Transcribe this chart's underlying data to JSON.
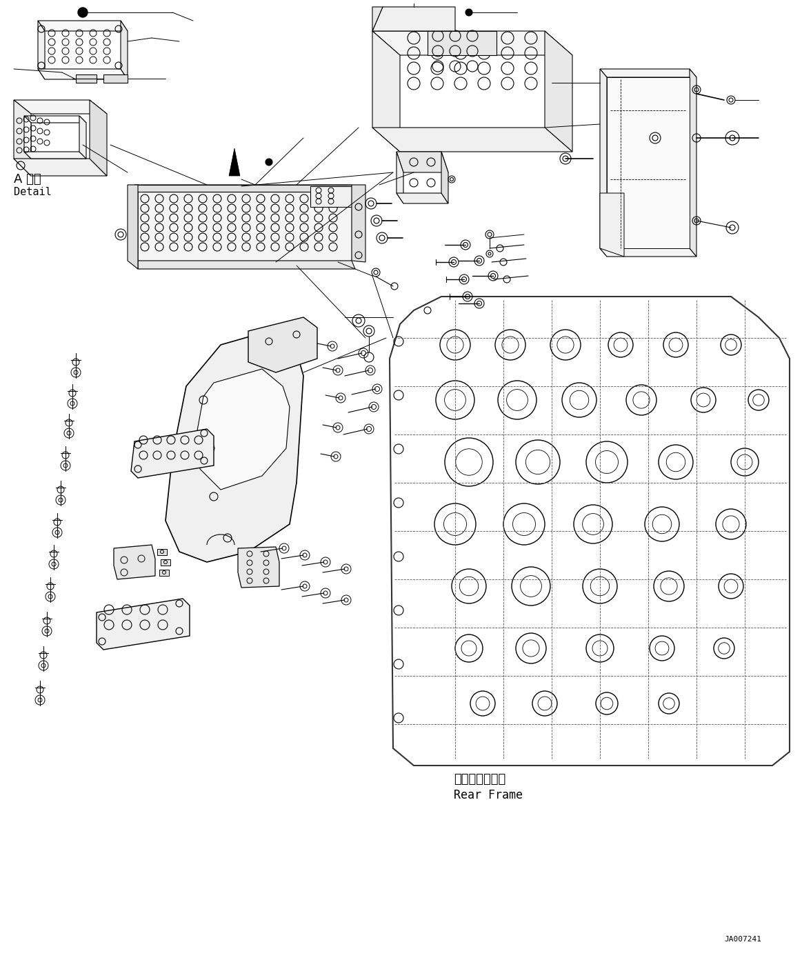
{
  "background_color": "#ffffff",
  "fig_width": 11.63,
  "fig_height": 13.92,
  "dpi": 100,
  "label_detail_jp": "A 詳細",
  "label_detail_en": "Detail",
  "label_rear_frame_jp": "リヤーフレーム",
  "label_rear_frame_en": "Rear Frame",
  "label_id": "JA007241",
  "line_color": "#000000",
  "font_size_label": 10,
  "font_size_id": 8
}
